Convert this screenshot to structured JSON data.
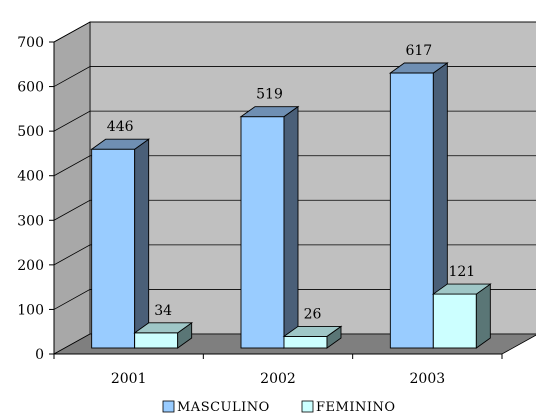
{
  "chart_data": {
    "type": "bar",
    "title": "",
    "xlabel": "",
    "ylabel": "",
    "categories": [
      "2001",
      "2002",
      "2003"
    ],
    "series": [
      {
        "name": "MASCULINO",
        "values": [
          446,
          519,
          617
        ]
      },
      {
        "name": "FEMININO",
        "values": [
          34,
          26,
          121
        ]
      }
    ],
    "ylim": [
      0,
      700
    ],
    "yticks": [
      "0",
      "100",
      "200",
      "300",
      "400",
      "500",
      "600",
      "700"
    ],
    "grid": true,
    "legend_position": "bottom",
    "style": "3d-column",
    "colors": {
      "masculino_front": "#99ccff",
      "masculino_side": "#4a5f78",
      "masculino_top": "#6f8fb3",
      "feminino_front": "#ccffff",
      "feminino_side": "#5a7676",
      "feminino_top": "#9fc7c7",
      "wall": "#c0c0c0",
      "floor": "#7f7f7f"
    }
  }
}
